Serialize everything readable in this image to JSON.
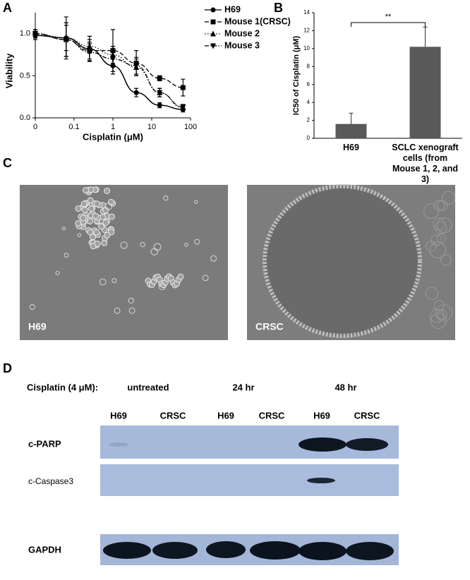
{
  "chart_data": [
    {
      "type": "line",
      "xlabel": "Cisplatin (μM)",
      "ylabel": "Viability",
      "xscale": "log",
      "x": [
        0.01,
        0.0625,
        0.25,
        1,
        4,
        16,
        64
      ],
      "xlim": [
        0.01,
        100
      ],
      "xticks": [
        {
          "value": 0.01,
          "label": "0"
        },
        0.1,
        1,
        10,
        100
      ],
      "ylim": [
        0,
        1.25
      ],
      "yticks": [
        {
          "value": 0,
          "label": "0.0"
        },
        0.5,
        {
          "value": 1,
          "label": "1.0"
        }
      ],
      "series": [
        {
          "name": "H69",
          "color": "#000000",
          "marker": "circle",
          "dash": "solid",
          "values": [
            0.98,
            0.95,
            0.82,
            0.62,
            0.3,
            0.15,
            0.1
          ],
          "errors": [
            0.05,
            0.25,
            0.15,
            0.1,
            0.05,
            0.03,
            0.03
          ]
        },
        {
          "name": "Mouse 1(CRSC)",
          "color": "#000000",
          "marker": "square",
          "dash": "dashed",
          "values": [
            1.0,
            0.93,
            0.8,
            0.8,
            0.65,
            0.47,
            0.36
          ],
          "errors": [
            0.05,
            0.2,
            0.1,
            0.25,
            0.15,
            0.03,
            0.1
          ]
        },
        {
          "name": "Mouse 2",
          "color": "#000000",
          "marker": "triangle-up",
          "dash": "dotted",
          "values": [
            1.0,
            0.95,
            0.85,
            0.75,
            0.6,
            0.3,
            0.12
          ],
          "errors": [
            0.05,
            0.15,
            0.08,
            0.1,
            0.1,
            0.05,
            0.03
          ]
        },
        {
          "name": "Mouse 3",
          "color": "#000000",
          "marker": "triangle-down",
          "dash": "dashdot",
          "values": [
            1.0,
            0.93,
            0.78,
            0.7,
            0.62,
            0.3,
            0.13
          ],
          "errors": [
            0.05,
            0.2,
            0.1,
            0.15,
            0.1,
            0.05,
            0.03
          ]
        }
      ]
    },
    {
      "type": "bar",
      "ylabel": "IC50 of Cisplatin (μM)",
      "categories": [
        "H69",
        "SCLC xenograft cells (from Mouse 1, 2, and 3)"
      ],
      "values": [
        1.6,
        10.2
      ],
      "errors": [
        1.2,
        2.2
      ],
      "color": "#595959",
      "ylim": [
        0,
        14
      ],
      "yticks": [
        0,
        2,
        4,
        6,
        8,
        10,
        12,
        14
      ],
      "annotation": "**"
    }
  ],
  "panel_labels": [
    "A",
    "B",
    "C",
    "D"
  ],
  "micrographs": [
    {
      "label": "H69"
    },
    {
      "label": "CRSC"
    }
  ],
  "blot": {
    "treatment_label": "Cisplatin (4 μM):",
    "conditions": [
      "untreated",
      "24 hr",
      "48 hr"
    ],
    "lanes": [
      "H69",
      "CRSC",
      "H69",
      "CRSC",
      "H69",
      "CRSC"
    ],
    "rows": [
      "c-PARP",
      "c-Caspase3",
      "GAPDH"
    ]
  }
}
